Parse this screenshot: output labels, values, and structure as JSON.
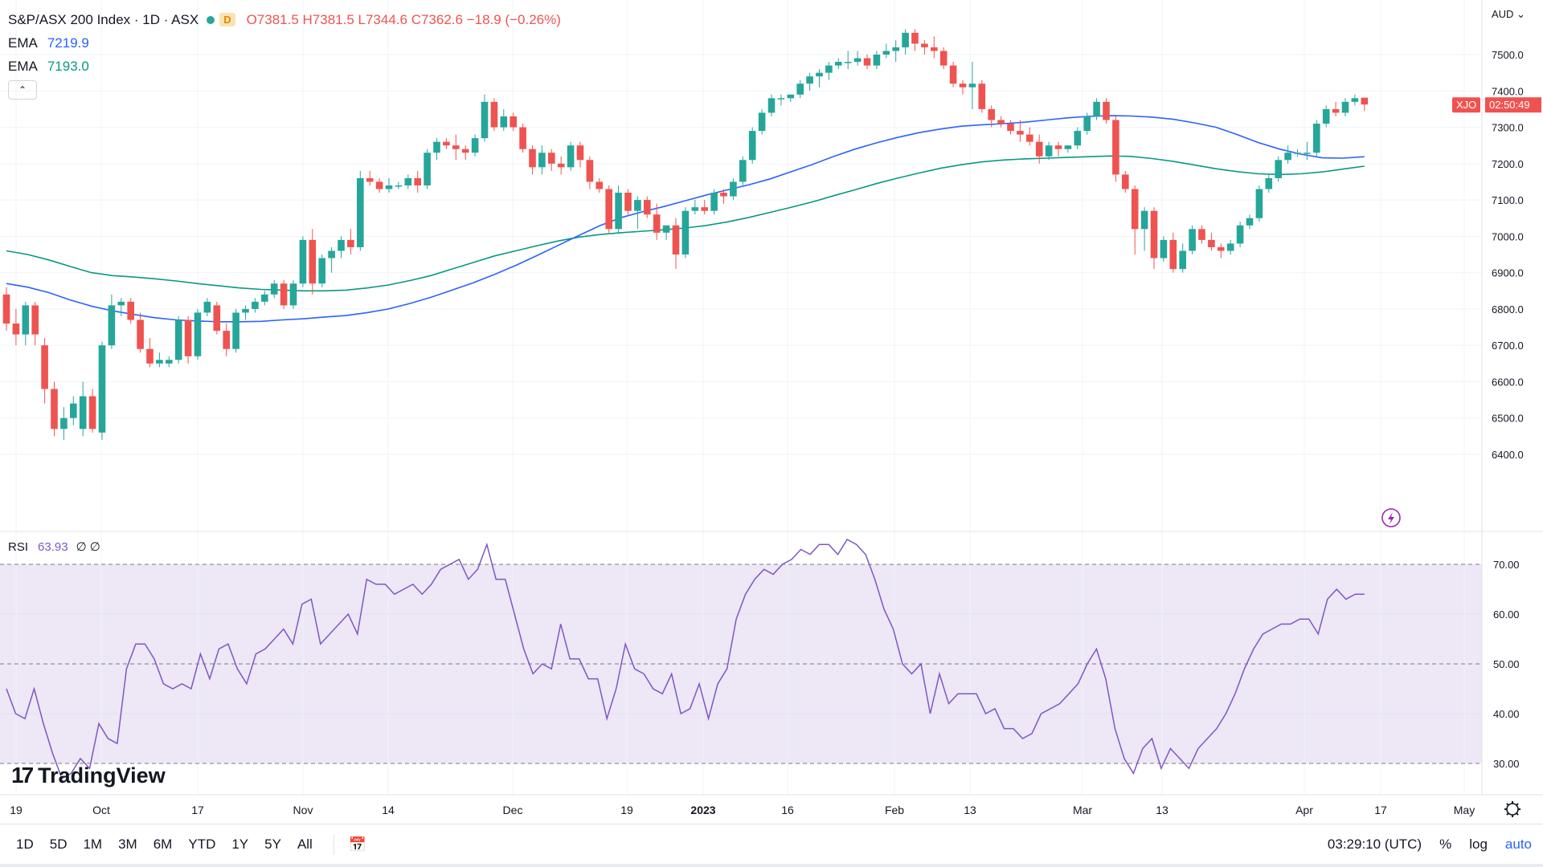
{
  "legend": {
    "title": "S&P/ASX 200 Index · 1D · ASX",
    "badge": "D",
    "ohlc": "O7381.5 H7381.5 L7344.6 C7362.6 −18.9 (−0.26%)",
    "ema1_label": "EMA",
    "ema1_value": "7219.9",
    "ema2_label": "EMA",
    "ema2_value": "7193.0",
    "collapse": "⌃"
  },
  "rsi_legend": {
    "label": "RSI",
    "value": "63.93",
    "extra": "∅ ∅"
  },
  "logo": {
    "mark": "17",
    "text": "TradingView"
  },
  "price_axis": {
    "currency": "AUD",
    "ticks": [
      "7500.0",
      "7400.0",
      "7300.0",
      "7200.0",
      "7100.0",
      "7000.0",
      "6900.0",
      "6800.0",
      "6700.0",
      "6600.0",
      "6500.0",
      "6400.0"
    ],
    "symbol_tag": "XJO",
    "countdown_tag": "02:50:49"
  },
  "rsi_axis": {
    "ticks": [
      "70.00",
      "60.00",
      "50.00",
      "40.00",
      "30.00"
    ]
  },
  "time_axis": {
    "labels": [
      "19",
      "Oct",
      "17",
      "Nov",
      "14",
      "Dec",
      "19",
      "2023",
      "16",
      "Feb",
      "13",
      "Mar",
      "13",
      "Apr",
      "17",
      "May"
    ]
  },
  "toolbar": {
    "timeframes": [
      "1D",
      "5D",
      "1M",
      "3M",
      "6M",
      "YTD",
      "1Y",
      "5Y",
      "All"
    ],
    "clock": "03:29:10 (UTC)",
    "percent": "%",
    "log": "log",
    "auto": "auto"
  },
  "colors": {
    "up": "#26a69a",
    "down": "#ef5350",
    "ema_fast": "#2962ff",
    "ema_slow": "#089981",
    "rsi": "#7e57c2",
    "rsi_band": "#ede7f6"
  },
  "chart_data": {
    "type": "candlestick",
    "ylim": [
      6340,
      7600
    ],
    "ohlc": [
      [
        6840,
        6860,
        6740,
        6760
      ],
      [
        6760,
        6800,
        6700,
        6730
      ],
      [
        6730,
        6820,
        6700,
        6810
      ],
      [
        6810,
        6820,
        6700,
        6730
      ],
      [
        6700,
        6720,
        6540,
        6580
      ],
      [
        6580,
        6600,
        6450,
        6470
      ],
      [
        6470,
        6530,
        6440,
        6500
      ],
      [
        6500,
        6560,
        6480,
        6540
      ],
      [
        6470,
        6600,
        6450,
        6560
      ],
      [
        6560,
        6580,
        6460,
        6470
      ],
      [
        6460,
        6710,
        6440,
        6700
      ],
      [
        6700,
        6840,
        6690,
        6810
      ],
      [
        6810,
        6830,
        6780,
        6820
      ],
      [
        6820,
        6830,
        6760,
        6770
      ],
      [
        6770,
        6790,
        6680,
        6690
      ],
      [
        6690,
        6720,
        6640,
        6650
      ],
      [
        6650,
        6680,
        6640,
        6660
      ],
      [
        6650,
        6670,
        6640,
        6660
      ],
      [
        6660,
        6780,
        6650,
        6770
      ],
      [
        6770,
        6780,
        6650,
        6670
      ],
      [
        6670,
        6800,
        6660,
        6790
      ],
      [
        6790,
        6830,
        6780,
        6820
      ],
      [
        6810,
        6820,
        6730,
        6740
      ],
      [
        6740,
        6760,
        6670,
        6690
      ],
      [
        6690,
        6800,
        6680,
        6790
      ],
      [
        6790,
        6810,
        6770,
        6800
      ],
      [
        6800,
        6830,
        6790,
        6820
      ],
      [
        6820,
        6850,
        6810,
        6840
      ],
      [
        6840,
        6880,
        6830,
        6870
      ],
      [
        6870,
        6880,
        6800,
        6810
      ],
      [
        6810,
        6880,
        6800,
        6870
      ],
      [
        6870,
        7000,
        6860,
        6990
      ],
      [
        6990,
        7020,
        6840,
        6870
      ],
      [
        6870,
        6950,
        6860,
        6940
      ],
      [
        6940,
        6970,
        6900,
        6960
      ],
      [
        6960,
        7000,
        6940,
        6990
      ],
      [
        6990,
        7020,
        6950,
        6970
      ],
      [
        6970,
        7180,
        6960,
        7160
      ],
      [
        7160,
        7180,
        7140,
        7150
      ],
      [
        7150,
        7160,
        7120,
        7130
      ],
      [
        7130,
        7160,
        7120,
        7140
      ],
      [
        7140,
        7150,
        7130,
        7140
      ],
      [
        7140,
        7170,
        7130,
        7160
      ],
      [
        7160,
        7180,
        7120,
        7140
      ],
      [
        7140,
        7240,
        7130,
        7230
      ],
      [
        7230,
        7270,
        7210,
        7260
      ],
      [
        7260,
        7270,
        7240,
        7250
      ],
      [
        7250,
        7280,
        7210,
        7240
      ],
      [
        7240,
        7250,
        7210,
        7230
      ],
      [
        7230,
        7280,
        7220,
        7270
      ],
      [
        7270,
        7390,
        7260,
        7370
      ],
      [
        7370,
        7380,
        7290,
        7300
      ],
      [
        7300,
        7350,
        7290,
        7330
      ],
      [
        7330,
        7340,
        7290,
        7300
      ],
      [
        7300,
        7310,
        7230,
        7240
      ],
      [
        7240,
        7250,
        7170,
        7190
      ],
      [
        7190,
        7250,
        7170,
        7230
      ],
      [
        7230,
        7240,
        7180,
        7200
      ],
      [
        7200,
        7220,
        7170,
        7190
      ],
      [
        7190,
        7260,
        7180,
        7250
      ],
      [
        7250,
        7260,
        7190,
        7210
      ],
      [
        7210,
        7220,
        7130,
        7150
      ],
      [
        7150,
        7160,
        7120,
        7130
      ],
      [
        7130,
        7140,
        7010,
        7020
      ],
      [
        7020,
        7140,
        7010,
        7120
      ],
      [
        7120,
        7130,
        7060,
        7070
      ],
      [
        7070,
        7110,
        7020,
        7100
      ],
      [
        7100,
        7110,
        7050,
        7060
      ],
      [
        7060,
        7090,
        6990,
        7010
      ],
      [
        7010,
        7030,
        6990,
        7030
      ],
      [
        7030,
        7050,
        6910,
        6950
      ],
      [
        6950,
        7080,
        6940,
        7070
      ],
      [
        7070,
        7100,
        7060,
        7080
      ],
      [
        7080,
        7100,
        7060,
        7070
      ],
      [
        7070,
        7130,
        7060,
        7120
      ],
      [
        7120,
        7130,
        7090,
        7110
      ],
      [
        7110,
        7160,
        7100,
        7150
      ],
      [
        7150,
        7220,
        7140,
        7210
      ],
      [
        7210,
        7300,
        7200,
        7290
      ],
      [
        7290,
        7350,
        7280,
        7340
      ],
      [
        7340,
        7390,
        7330,
        7380
      ],
      [
        7380,
        7390,
        7360,
        7380
      ],
      [
        7380,
        7390,
        7370,
        7390
      ],
      [
        7390,
        7430,
        7380,
        7420
      ],
      [
        7420,
        7450,
        7400,
        7440
      ],
      [
        7440,
        7460,
        7410,
        7450
      ],
      [
        7450,
        7480,
        7430,
        7470
      ],
      [
        7470,
        7490,
        7460,
        7480
      ],
      [
        7480,
        7510,
        7460,
        7480
      ],
      [
        7480,
        7510,
        7470,
        7490
      ],
      [
        7490,
        7500,
        7460,
        7470
      ],
      [
        7470,
        7510,
        7460,
        7500
      ],
      [
        7500,
        7530,
        7490,
        7510
      ],
      [
        7510,
        7540,
        7480,
        7520
      ],
      [
        7520,
        7570,
        7500,
        7560
      ],
      [
        7560,
        7570,
        7510,
        7530
      ],
      [
        7530,
        7540,
        7500,
        7520
      ],
      [
        7520,
        7550,
        7490,
        7510
      ],
      [
        7510,
        7520,
        7460,
        7470
      ],
      [
        7470,
        7480,
        7410,
        7420
      ],
      [
        7420,
        7430,
        7390,
        7410
      ],
      [
        7410,
        7480,
        7350,
        7420
      ],
      [
        7420,
        7430,
        7340,
        7350
      ],
      [
        7350,
        7360,
        7300,
        7320
      ],
      [
        7320,
        7330,
        7300,
        7310
      ],
      [
        7310,
        7320,
        7280,
        7290
      ],
      [
        7290,
        7320,
        7260,
        7280
      ],
      [
        7280,
        7300,
        7250,
        7260
      ],
      [
        7260,
        7280,
        7200,
        7220
      ],
      [
        7220,
        7260,
        7210,
        7250
      ],
      [
        7250,
        7260,
        7220,
        7240
      ],
      [
        7240,
        7250,
        7230,
        7250
      ],
      [
        7250,
        7300,
        7240,
        7290
      ],
      [
        7290,
        7340,
        7280,
        7330
      ],
      [
        7330,
        7380,
        7320,
        7370
      ],
      [
        7370,
        7380,
        7310,
        7320
      ],
      [
        7320,
        7330,
        7150,
        7170
      ],
      [
        7170,
        7180,
        7120,
        7130
      ],
      [
        7130,
        7140,
        6950,
        7020
      ],
      [
        7020,
        7080,
        6960,
        7070
      ],
      [
        7070,
        7080,
        6910,
        6940
      ],
      [
        6940,
        7000,
        6930,
        6990
      ],
      [
        6990,
        7010,
        6900,
        6910
      ],
      [
        6910,
        6980,
        6900,
        6960
      ],
      [
        6960,
        7030,
        6950,
        7020
      ],
      [
        7020,
        7030,
        6980,
        6990
      ],
      [
        6990,
        7010,
        6960,
        6970
      ],
      [
        6970,
        6980,
        6940,
        6960
      ],
      [
        6960,
        6990,
        6950,
        6980
      ],
      [
        6980,
        7040,
        6970,
        7030
      ],
      [
        7030,
        7060,
        7020,
        7050
      ],
      [
        7050,
        7140,
        7040,
        7130
      ],
      [
        7130,
        7170,
        7120,
        7160
      ],
      [
        7160,
        7220,
        7150,
        7210
      ],
      [
        7210,
        7250,
        7200,
        7230
      ],
      [
        7230,
        7240,
        7220,
        7230
      ],
      [
        7230,
        7260,
        7210,
        7230
      ],
      [
        7230,
        7320,
        7220,
        7310
      ],
      [
        7310,
        7360,
        7300,
        7350
      ],
      [
        7350,
        7370,
        7330,
        7340
      ],
      [
        7340,
        7380,
        7330,
        7370
      ],
      [
        7370,
        7390,
        7360,
        7380
      ],
      [
        7381.5,
        7381.5,
        7344.6,
        7362.6
      ]
    ],
    "ema_fast": [
      6870,
      6860,
      6845,
      6825,
      6808,
      6795,
      6785,
      6776,
      6770,
      6767,
      6765,
      6765,
      6766,
      6770,
      6773,
      6778,
      6782,
      6790,
      6800,
      6815,
      6832,
      6852,
      6872,
      6895,
      6920,
      6947,
      6975,
      7003,
      7030,
      7052,
      7068,
      7082,
      7098,
      7114,
      7128,
      7142,
      7158,
      7178,
      7198,
      7220,
      7240,
      7257,
      7272,
      7285,
      7295,
      7303,
      7307,
      7310,
      7314,
      7320,
      7326,
      7330,
      7332,
      7331,
      7328,
      7322,
      7312,
      7300,
      7280,
      7258,
      7240,
      7226,
      7216,
      7215,
      7219
    ],
    "ema_slow": [
      6960,
      6950,
      6935,
      6917,
      6900,
      6892,
      6888,
      6883,
      6877,
      6870,
      6864,
      6858,
      6854,
      6852,
      6850,
      6850,
      6852,
      6858,
      6866,
      6878,
      6892,
      6910,
      6928,
      6946,
      6960,
      6974,
      6987,
      6998,
      7005,
      7010,
      7014,
      7018,
      7023,
      7030,
      7040,
      7052,
      7066,
      7080,
      7095,
      7112,
      7128,
      7145,
      7160,
      7174,
      7187,
      7197,
      7205,
      7210,
      7213,
      7215,
      7217,
      7219,
      7221,
      7220,
      7214,
      7206,
      7196,
      7186,
      7178,
      7172,
      7170,
      7172,
      7177,
      7185,
      7193
    ],
    "rsi": [
      45,
      40,
      39,
      45,
      38,
      32,
      27,
      28,
      31,
      29,
      38,
      35,
      34,
      49,
      54,
      54,
      51,
      46,
      45,
      46,
      45,
      52,
      47,
      53,
      54,
      49,
      46,
      52,
      53,
      55,
      57,
      54,
      62,
      63,
      54,
      56,
      58,
      60,
      56,
      67,
      66,
      66,
      64,
      65,
      66,
      64,
      66,
      69,
      70,
      71,
      67,
      69,
      74,
      67,
      67,
      60,
      53,
      48,
      50,
      49,
      58,
      51,
      51,
      47,
      47,
      39,
      45,
      54,
      49,
      48,
      45,
      44,
      48,
      40,
      41,
      46,
      39,
      46,
      49,
      59,
      64,
      67,
      69,
      68,
      70,
      71,
      73,
      72,
      74,
      74,
      72,
      75,
      74,
      72,
      67,
      61,
      57,
      50,
      48,
      50,
      40,
      48,
      42,
      44,
      44,
      44,
      40,
      41,
      37,
      37,
      35,
      36,
      40,
      41,
      42,
      44,
      46,
      50,
      53,
      47,
      37,
      31,
      28,
      33,
      35,
      29,
      33,
      31,
      29,
      33,
      35,
      37,
      40,
      44,
      49,
      53,
      56,
      57,
      58,
      58,
      59,
      59,
      56,
      63,
      65,
      63,
      64,
      64
    ]
  }
}
